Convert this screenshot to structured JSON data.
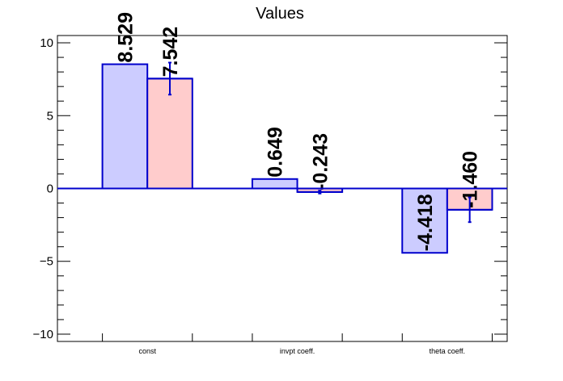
{
  "chart_data": {
    "type": "bar",
    "title": "Values",
    "xlabel": "",
    "ylabel": "",
    "ylim": [
      -10.5,
      10.5
    ],
    "yticks": [
      -10,
      -5,
      0,
      5,
      10
    ],
    "ytick_labels": [
      "−10",
      "−5",
      "0",
      "5",
      "10"
    ],
    "categories": [
      "const",
      "invpt coeff.",
      "theta coeff."
    ],
    "series": [
      {
        "values": [
          8.529,
          0.649,
          -4.418
        ],
        "labels": [
          "8.529",
          "0.649",
          "-4.418"
        ],
        "errors": [
          0,
          0,
          0
        ],
        "fill": "#ccccff",
        "stroke": "#0000cc"
      },
      {
        "values": [
          7.542,
          -0.243,
          -1.46
        ],
        "labels": [
          "7.542",
          "-0.243",
          "-1.460"
        ],
        "errors": [
          1.1,
          0.1,
          0.85
        ],
        "fill": "#ffcccc",
        "stroke": "#0000cc"
      }
    ],
    "grid": false,
    "legend": "none"
  }
}
